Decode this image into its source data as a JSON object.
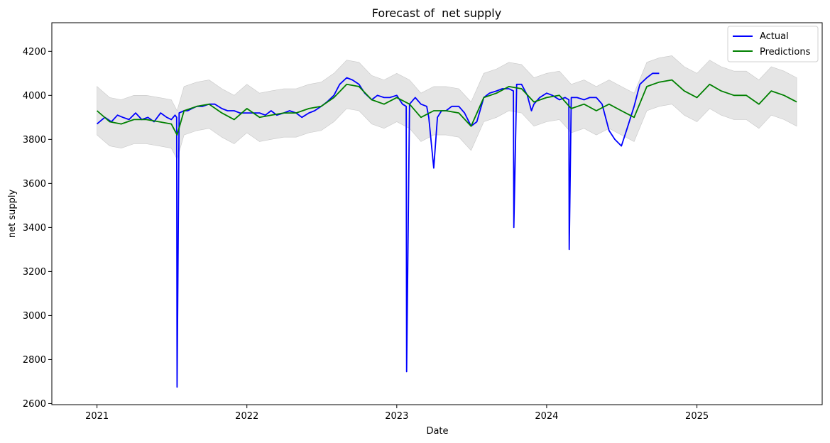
{
  "chart_data": {
    "type": "line",
    "title": "Forecast of  net supply",
    "xlabel": "Date",
    "ylabel": "net supply",
    "xlim": [
      "2020-09-13",
      "2025-11-02"
    ],
    "ylim": [
      2595,
      4330
    ],
    "x_ticks": [
      "2021",
      "2022",
      "2023",
      "2024",
      "2025"
    ],
    "x_tick_dates": [
      "2021-01-01",
      "2022-01-01",
      "2023-01-01",
      "2024-01-01",
      "2025-01-01"
    ],
    "y_ticks": [
      2600,
      2800,
      3000,
      3200,
      3400,
      3600,
      3800,
      4000,
      4200
    ],
    "grid": false,
    "legend_position": "top-right",
    "colors": {
      "actual": "#0000ff",
      "predictions": "#008000",
      "band": "#d3d3d3"
    },
    "series": [
      {
        "name": "Actual",
        "x": [
          "2021-01-01",
          "2021-01-20",
          "2021-02-05",
          "2021-02-20",
          "2021-03-05",
          "2021-03-20",
          "2021-04-05",
          "2021-04-20",
          "2021-05-05",
          "2021-05-20",
          "2021-06-05",
          "2021-06-20",
          "2021-07-01",
          "2021-07-10",
          "2021-07-14",
          "2021-07-15",
          "2021-07-20",
          "2021-08-01",
          "2021-08-10",
          "2021-08-20",
          "2021-09-01",
          "2021-09-15",
          "2021-10-01",
          "2021-10-15",
          "2021-11-01",
          "2021-11-15",
          "2021-12-01",
          "2021-12-15",
          "2022-01-01",
          "2022-01-15",
          "2022-02-01",
          "2022-02-15",
          "2022-03-01",
          "2022-03-15",
          "2022-04-01",
          "2022-04-15",
          "2022-05-01",
          "2022-05-15",
          "2022-06-01",
          "2022-06-15",
          "2022-07-01",
          "2022-07-15",
          "2022-08-01",
          "2022-08-15",
          "2022-09-01",
          "2022-09-15",
          "2022-10-01",
          "2022-10-15",
          "2022-11-01",
          "2022-11-15",
          "2022-12-01",
          "2022-12-15",
          "2023-01-01",
          "2023-01-15",
          "2023-01-24",
          "2023-01-25",
          "2023-02-01",
          "2023-02-15",
          "2023-03-01",
          "2023-03-15",
          "2023-03-20",
          "2023-04-01",
          "2023-04-10",
          "2023-04-20",
          "2023-05-01",
          "2023-05-15",
          "2023-06-01",
          "2023-06-15",
          "2023-07-01",
          "2023-07-15",
          "2023-08-01",
          "2023-08-15",
          "2023-09-01",
          "2023-09-15",
          "2023-10-01",
          "2023-10-12",
          "2023-10-13",
          "2023-10-20",
          "2023-11-01",
          "2023-11-15",
          "2023-11-25",
          "2023-12-01",
          "2023-12-15",
          "2024-01-01",
          "2024-01-15",
          "2024-02-01",
          "2024-02-15",
          "2024-02-24",
          "2024-02-25",
          "2024-03-01",
          "2024-03-15",
          "2024-04-01",
          "2024-04-15",
          "2024-05-01",
          "2024-05-15",
          "2024-06-01",
          "2024-06-15",
          "2024-07-01",
          "2024-07-15",
          "2024-08-01",
          "2024-08-15",
          "2024-09-01",
          "2024-09-15",
          "2024-10-01"
        ],
        "values": [
          3870,
          3900,
          3880,
          3910,
          3900,
          3890,
          3920,
          3890,
          3900,
          3880,
          3920,
          3900,
          3890,
          3910,
          3900,
          2675,
          3920,
          3930,
          3930,
          3940,
          3950,
          3950,
          3960,
          3960,
          3940,
          3930,
          3930,
          3920,
          3920,
          3920,
          3920,
          3910,
          3930,
          3910,
          3920,
          3930,
          3920,
          3900,
          3920,
          3930,
          3950,
          3970,
          4000,
          4050,
          4080,
          4070,
          4050,
          4010,
          3980,
          4000,
          3990,
          3990,
          4000,
          3960,
          3950,
          2745,
          3960,
          3990,
          3960,
          3950,
          3900,
          3670,
          3900,
          3930,
          3930,
          3950,
          3950,
          3920,
          3860,
          3880,
          3990,
          4010,
          4020,
          4030,
          4030,
          4020,
          3400,
          4050,
          4050,
          4000,
          3930,
          3960,
          3990,
          4010,
          4000,
          3980,
          3990,
          3980,
          3300,
          3990,
          3990,
          3980,
          3990,
          3990,
          3960,
          3840,
          3800,
          3770,
          3850,
          3950,
          4050,
          4080,
          4100,
          4100
        ]
      },
      {
        "name": "Predictions",
        "x": [
          "2021-01-01",
          "2021-02-01",
          "2021-03-01",
          "2021-04-01",
          "2021-05-01",
          "2021-06-01",
          "2021-07-01",
          "2021-07-15",
          "2021-08-01",
          "2021-09-01",
          "2021-10-01",
          "2021-11-01",
          "2021-12-01",
          "2022-01-01",
          "2022-02-01",
          "2022-03-01",
          "2022-04-01",
          "2022-05-01",
          "2022-06-01",
          "2022-07-01",
          "2022-08-01",
          "2022-09-01",
          "2022-10-01",
          "2022-11-01",
          "2022-12-01",
          "2023-01-01",
          "2023-02-01",
          "2023-03-01",
          "2023-04-01",
          "2023-05-01",
          "2023-06-01",
          "2023-07-01",
          "2023-08-01",
          "2023-09-01",
          "2023-10-01",
          "2023-11-01",
          "2023-12-01",
          "2024-01-01",
          "2024-02-01",
          "2024-03-01",
          "2024-04-01",
          "2024-05-01",
          "2024-06-01",
          "2024-07-01",
          "2024-08-01",
          "2024-09-01",
          "2024-10-01",
          "2024-11-01",
          "2024-12-01",
          "2025-01-01",
          "2025-02-01",
          "2025-03-01",
          "2025-04-01",
          "2025-05-01",
          "2025-06-01",
          "2025-07-01",
          "2025-08-01",
          "2025-09-01"
        ],
        "values": [
          3930,
          3880,
          3870,
          3890,
          3890,
          3880,
          3870,
          3820,
          3930,
          3950,
          3960,
          3920,
          3890,
          3940,
          3900,
          3910,
          3920,
          3920,
          3940,
          3950,
          3990,
          4050,
          4040,
          3980,
          3960,
          3990,
          3960,
          3900,
          3930,
          3930,
          3920,
          3860,
          3990,
          4010,
          4040,
          4030,
          3970,
          3990,
          4000,
          3940,
          3960,
          3930,
          3960,
          3930,
          3900,
          4040,
          4060,
          4070,
          4020,
          3990,
          4050,
          4020,
          4000,
          4000,
          3960,
          4020,
          4000,
          3970
        ]
      }
    ]
  }
}
